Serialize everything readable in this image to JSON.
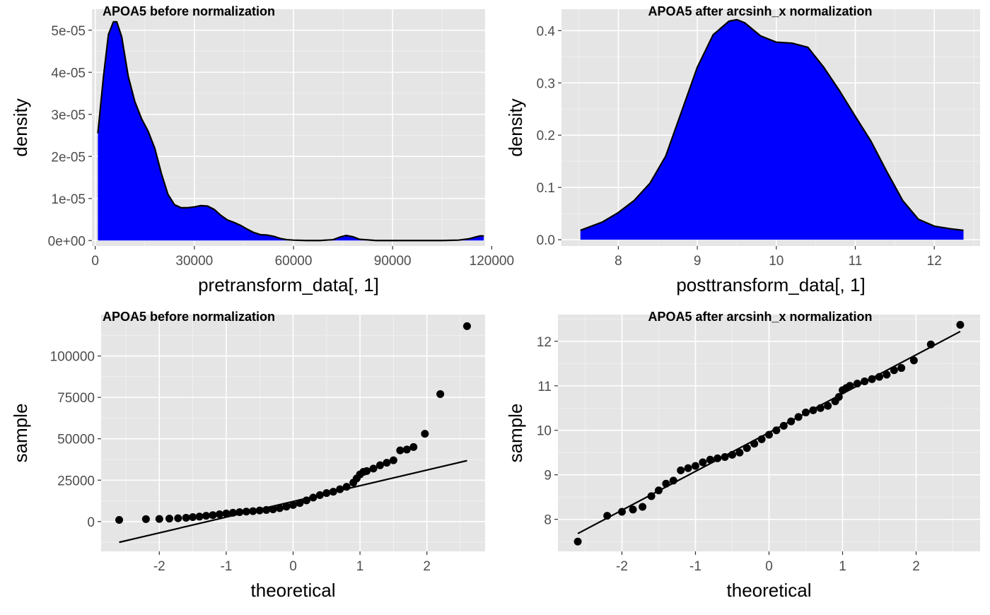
{
  "chart_data": [
    {
      "type": "area",
      "title": "APOA5 before normalization",
      "xlabel": "pretransform_data[, 1]",
      "ylabel": "density",
      "xlim": [
        -1000,
        118000
      ],
      "ylim": [
        -1.3e-06,
        5.5e-05
      ],
      "xticks": [
        0,
        30000,
        60000,
        90000,
        120000
      ],
      "xtick_labels": [
        "0",
        "30000",
        "60000",
        "90000",
        "120000"
      ],
      "yticks": [
        0,
        1e-05,
        2e-05,
        3e-05,
        4e-05,
        5e-05
      ],
      "ytick_labels": [
        "0e+00",
        "1e-05",
        "2e-05",
        "3e-05",
        "4e-05",
        "5e-05"
      ],
      "fill_color": "#0000ff",
      "line_color": "#000000",
      "grid": true,
      "x": [
        800,
        2500,
        4000,
        5500,
        6500,
        8000,
        10000,
        12000,
        14000,
        16000,
        18000,
        20000,
        22000,
        24000,
        26000,
        28000,
        30000,
        32000,
        34000,
        36000,
        38000,
        40000,
        42000,
        44000,
        46000,
        48000,
        50000,
        52000,
        54000,
        56000,
        58000,
        60000,
        64000,
        68000,
        72000,
        74000,
        76000,
        78000,
        80000,
        85000,
        90000,
        95000,
        100000,
        105000,
        110000,
        113000,
        115000,
        116500,
        117600
      ],
      "y": [
        2.55e-05,
        3.9e-05,
        4.9e-05,
        5.2e-05,
        5.2e-05,
        4.85e-05,
        3.9e-05,
        3.3e-05,
        2.9e-05,
        2.6e-05,
        2.2e-05,
        1.6e-05,
        1.1e-05,
        8.5e-06,
        7.8e-06,
        7.8e-06,
        8e-06,
        8.3e-06,
        8.2e-06,
        7.4e-06,
        6e-06,
        4.9e-06,
        4.3e-06,
        3.6e-06,
        2.7e-06,
        1.9e-06,
        1.4e-06,
        1.3e-06,
        1e-06,
        5e-07,
        2e-07,
        1e-07,
        0,
        0,
        2e-07,
        8e-07,
        1.2e-06,
        9e-07,
        3e-07,
        0,
        0,
        0,
        0,
        0,
        1e-07,
        4e-07,
        8e-07,
        1.1e-06,
        1.1e-06
      ]
    },
    {
      "type": "area",
      "title": "APOA5 after arcsinh_x normalization",
      "xlabel": "posttransform_data[, 1]",
      "ylabel": "density",
      "xlim": [
        7.28,
        12.58
      ],
      "ylim": [
        -0.012,
        0.441
      ],
      "xticks": [
        8,
        9,
        10,
        11,
        12
      ],
      "xtick_labels": [
        "8",
        "9",
        "10",
        "11",
        "12"
      ],
      "yticks": [
        0,
        0.1,
        0.2,
        0.3,
        0.4
      ],
      "ytick_labels": [
        "0.0",
        "0.1",
        "0.2",
        "0.3",
        "0.4"
      ],
      "fill_color": "#0000ff",
      "line_color": "#000000",
      "grid": true,
      "x": [
        7.52,
        7.8,
        8.0,
        8.2,
        8.4,
        8.6,
        8.8,
        9.0,
        9.2,
        9.4,
        9.5,
        9.6,
        9.8,
        10.0,
        10.2,
        10.4,
        10.6,
        10.8,
        11.0,
        11.2,
        11.4,
        11.6,
        11.8,
        12.0,
        12.2,
        12.37
      ],
      "y": [
        0.018,
        0.034,
        0.052,
        0.075,
        0.108,
        0.16,
        0.245,
        0.33,
        0.392,
        0.418,
        0.421,
        0.415,
        0.39,
        0.378,
        0.376,
        0.368,
        0.33,
        0.285,
        0.236,
        0.188,
        0.13,
        0.075,
        0.039,
        0.026,
        0.021,
        0.018
      ]
    },
    {
      "type": "scatter",
      "title": "APOA5 before normalization",
      "xlabel": "theoretical",
      "ylabel": "sample",
      "xlim": [
        -2.87,
        2.87
      ],
      "ylim": [
        -18000,
        125000
      ],
      "xticks": [
        -2,
        -1,
        0,
        1,
        2
      ],
      "xtick_labels": [
        "-2",
        "-1",
        "0",
        "1",
        "2"
      ],
      "yticks": [
        0,
        25000,
        50000,
        75000,
        100000
      ],
      "ytick_labels": [
        "0",
        "25000",
        "50000",
        "75000",
        "100000"
      ],
      "point_color": "#000000",
      "line_color": "#000000",
      "grid": true,
      "reference_line": {
        "x": [
          -2.6,
          2.6
        ],
        "y": [
          -12500,
          36800
        ]
      },
      "points": {
        "x": [
          -2.6,
          -2.2,
          -2.0,
          -1.85,
          -1.72,
          -1.6,
          -1.5,
          -1.4,
          -1.3,
          -1.2,
          -1.1,
          -1.0,
          -0.9,
          -0.8,
          -0.7,
          -0.6,
          -0.5,
          -0.4,
          -0.3,
          -0.2,
          -0.1,
          0.0,
          0.1,
          0.2,
          0.3,
          0.4,
          0.5,
          0.6,
          0.7,
          0.8,
          0.9,
          0.95,
          1.0,
          1.05,
          1.1,
          1.2,
          1.3,
          1.4,
          1.5,
          1.6,
          1.7,
          1.8,
          1.97,
          2.2,
          2.6
        ],
        "y": [
          1000,
          1500,
          1600,
          1800,
          2000,
          2300,
          2700,
          3000,
          3500,
          3900,
          4400,
          4900,
          5300,
          5700,
          6000,
          6300,
          6700,
          7000,
          7400,
          8100,
          9000,
          10000,
          11200,
          12800,
          14500,
          16000,
          17200,
          18000,
          19500,
          21000,
          23500,
          26000,
          28500,
          30000,
          30500,
          32000,
          34000,
          35500,
          37000,
          43000,
          43500,
          45000,
          53000,
          77000,
          118000
        ]
      }
    },
    {
      "type": "scatter",
      "title": "APOA5 after arcsinh_x normalization",
      "xlabel": "theoretical",
      "ylabel": "sample",
      "xlim": [
        -2.87,
        2.87
      ],
      "ylim": [
        7.28,
        12.6
      ],
      "xticks": [
        -2,
        -1,
        0,
        1,
        2
      ],
      "xtick_labels": [
        "-2",
        "-1",
        "0",
        "1",
        "2"
      ],
      "yticks": [
        8,
        9,
        10,
        11,
        12
      ],
      "ytick_labels": [
        "8",
        "9",
        "10",
        "11",
        "12"
      ],
      "point_color": "#000000",
      "line_color": "#000000",
      "grid": true,
      "reference_line": {
        "x": [
          -2.6,
          2.6
        ],
        "y": [
          7.68,
          12.22
        ]
      },
      "points": {
        "x": [
          -2.6,
          -2.2,
          -2.0,
          -1.85,
          -1.72,
          -1.6,
          -1.5,
          -1.4,
          -1.3,
          -1.2,
          -1.1,
          -1.0,
          -0.9,
          -0.8,
          -0.7,
          -0.6,
          -0.5,
          -0.4,
          -0.3,
          -0.2,
          -0.1,
          0.0,
          0.1,
          0.2,
          0.3,
          0.4,
          0.5,
          0.6,
          0.7,
          0.8,
          0.9,
          0.95,
          1.0,
          1.05,
          1.1,
          1.2,
          1.3,
          1.4,
          1.5,
          1.6,
          1.7,
          1.8,
          1.97,
          2.2,
          2.6
        ],
        "y": [
          7.5,
          8.08,
          8.17,
          8.22,
          8.28,
          8.52,
          8.65,
          8.8,
          8.87,
          9.1,
          9.15,
          9.2,
          9.28,
          9.34,
          9.37,
          9.4,
          9.45,
          9.5,
          9.6,
          9.7,
          9.8,
          9.9,
          10.0,
          10.1,
          10.2,
          10.3,
          10.4,
          10.45,
          10.5,
          10.55,
          10.65,
          10.75,
          10.9,
          10.95,
          11.0,
          11.05,
          11.1,
          11.15,
          11.2,
          11.25,
          11.35,
          11.4,
          11.57,
          11.93,
          12.37
        ]
      }
    }
  ]
}
